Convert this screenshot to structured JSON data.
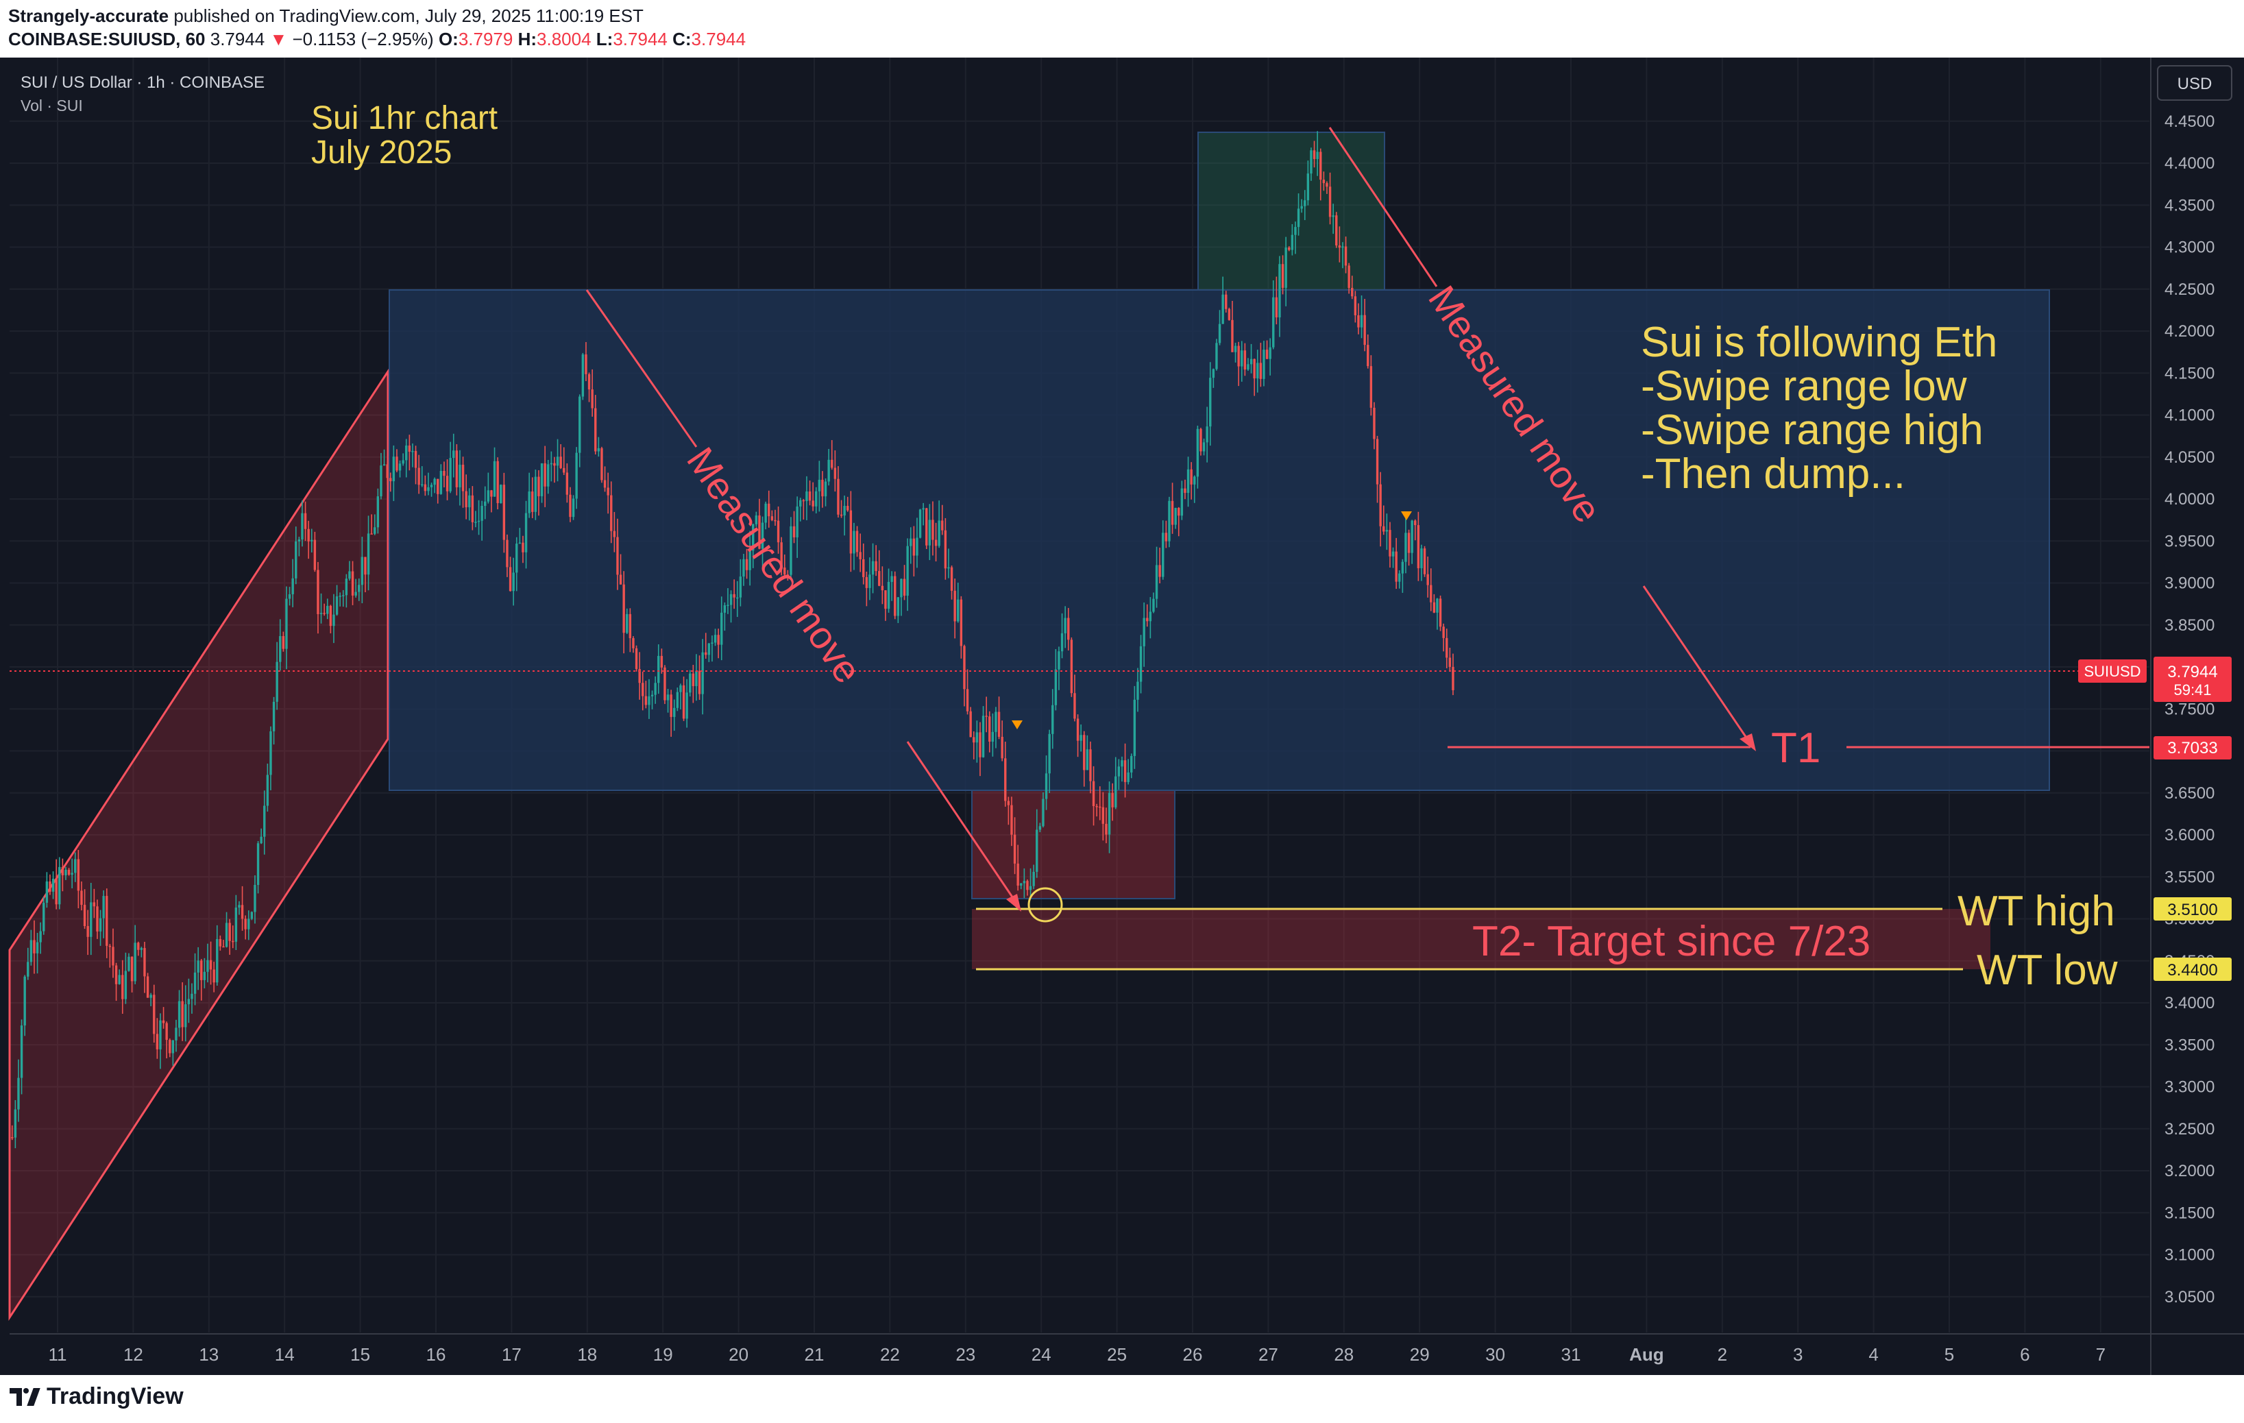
{
  "header": {
    "author": "Strangely-accurate",
    "published": "published on TradingView.com, July 29, 2025 11:00:19 EST",
    "symbol": "COINBASE:SUIUSD, 60",
    "last": "3.7944",
    "change": "−0.1153 (−2.95%)",
    "o_label": "O:",
    "o_value": "3.7979",
    "h_label": "H:",
    "h_value": "3.8004",
    "l_label": "L:",
    "l_value": "3.7944",
    "c_label": "C:",
    "c_value": "3.7944"
  },
  "legend": {
    "title": "SUI / US Dollar · 1h · COINBASE",
    "volume": "Vol · SUI",
    "currency_button": "USD"
  },
  "colors": {
    "background": "#131722",
    "up": "#26a69a",
    "down": "#ef5350",
    "annotation_red": "#f7525f",
    "annotation_yellow": "#f0d55a",
    "range_fill": "#1e3354"
  },
  "chart_data": {
    "type": "candlestick",
    "timeframe": "1h",
    "x_ticks": [
      "11",
      "12",
      "13",
      "14",
      "15",
      "16",
      "17",
      "18",
      "19",
      "20",
      "21",
      "22",
      "23",
      "24",
      "25",
      "26",
      "27",
      "28",
      "29",
      "30",
      "31",
      "Aug",
      "2",
      "3",
      "4",
      "5",
      "6",
      "7"
    ],
    "y_ticks": [
      "3.0500",
      "3.1000",
      "3.1500",
      "3.2000",
      "3.2500",
      "3.3000",
      "3.3500",
      "3.4000",
      "3.4500",
      "3.5000",
      "3.5500",
      "3.6000",
      "3.6500",
      "3.7000",
      "3.7500",
      "3.8000",
      "3.8500",
      "3.9000",
      "3.9500",
      "4.0000",
      "4.0500",
      "4.1000",
      "4.1500",
      "4.2000",
      "4.2500",
      "4.3000",
      "4.3500",
      "4.4000",
      "4.4500"
    ],
    "y_range": [
      3.0,
      4.47
    ],
    "price_path": [
      [
        10.4,
        3.24
      ],
      [
        10.6,
        3.46
      ],
      [
        10.9,
        3.53
      ],
      [
        11.2,
        3.56
      ],
      [
        11.4,
        3.49
      ],
      [
        11.6,
        3.52
      ],
      [
        11.8,
        3.41
      ],
      [
        12.1,
        3.47
      ],
      [
        12.3,
        3.37
      ],
      [
        12.5,
        3.36
      ],
      [
        12.8,
        3.42
      ],
      [
        13.1,
        3.45
      ],
      [
        13.4,
        3.5
      ],
      [
        13.6,
        3.52
      ],
      [
        13.8,
        3.72
      ],
      [
        14.1,
        3.92
      ],
      [
        14.3,
        3.98
      ],
      [
        14.5,
        3.84
      ],
      [
        14.8,
        3.9
      ],
      [
        15.1,
        3.93
      ],
      [
        15.3,
        4.03
      ],
      [
        15.6,
        4.07
      ],
      [
        15.9,
        4.0
      ],
      [
        16.2,
        4.04
      ],
      [
        16.5,
        3.99
      ],
      [
        16.8,
        4.03
      ],
      [
        17.0,
        3.9
      ],
      [
        17.3,
        4.01
      ],
      [
        17.6,
        4.04
      ],
      [
        17.8,
        3.99
      ],
      [
        17.95,
        4.2
      ],
      [
        18.1,
        4.06
      ],
      [
        18.3,
        3.98
      ],
      [
        18.5,
        3.85
      ],
      [
        18.7,
        3.76
      ],
      [
        18.9,
        3.8
      ],
      [
        19.2,
        3.75
      ],
      [
        19.5,
        3.79
      ],
      [
        19.8,
        3.86
      ],
      [
        20.1,
        3.93
      ],
      [
        20.4,
        3.99
      ],
      [
        20.6,
        3.92
      ],
      [
        20.9,
        4.0
      ],
      [
        21.2,
        4.04
      ],
      [
        21.5,
        3.95
      ],
      [
        21.8,
        3.9
      ],
      [
        22.1,
        3.88
      ],
      [
        22.4,
        3.97
      ],
      [
        22.7,
        3.95
      ],
      [
        22.9,
        3.86
      ],
      [
        23.1,
        3.7
      ],
      [
        23.4,
        3.74
      ],
      [
        23.6,
        3.59
      ],
      [
        23.8,
        3.52
      ],
      [
        24.0,
        3.64
      ],
      [
        24.3,
        3.86
      ],
      [
        24.5,
        3.72
      ],
      [
        24.8,
        3.61
      ],
      [
        25.0,
        3.66
      ],
      [
        25.2,
        3.71
      ],
      [
        25.4,
        3.87
      ],
      [
        25.7,
        3.98
      ],
      [
        26.0,
        4.04
      ],
      [
        26.2,
        4.1
      ],
      [
        26.4,
        4.22
      ],
      [
        26.6,
        4.17
      ],
      [
        26.9,
        4.15
      ],
      [
        27.2,
        4.28
      ],
      [
        27.4,
        4.35
      ],
      [
        27.6,
        4.41
      ],
      [
        27.8,
        4.36
      ],
      [
        28.0,
        4.28
      ],
      [
        28.3,
        4.17
      ],
      [
        28.5,
        3.97
      ],
      [
        28.7,
        3.92
      ],
      [
        28.9,
        3.97
      ],
      [
        29.1,
        3.89
      ],
      [
        29.3,
        3.84
      ],
      [
        29.45,
        3.7944
      ]
    ],
    "last_price_label": "SUIUSD",
    "last_price": "3.7944",
    "countdown": "59:41",
    "levels": [
      {
        "name": "T1",
        "value": "3.7033"
      },
      {
        "name": "WT high",
        "value": "3.5100"
      },
      {
        "name": "WT low",
        "value": "3.4400"
      }
    ],
    "annotations": {
      "chart_label_line1": "Sui 1hr chart",
      "chart_label_line2": "July 2025",
      "measured_move_1": "Measured move",
      "measured_move_2": "Measured move",
      "t1_label": "T1",
      "t2_label": "T2- Target since 7/23",
      "wt_high_label": "WT high",
      "wt_low_label": "WT low",
      "note_line1": "Sui is following Eth",
      "note_line2": "-Swipe range low",
      "note_line3": "-Swipe range high",
      "note_line4": "-Then dump..."
    }
  },
  "footer": {
    "logo_text": "TradingView"
  }
}
